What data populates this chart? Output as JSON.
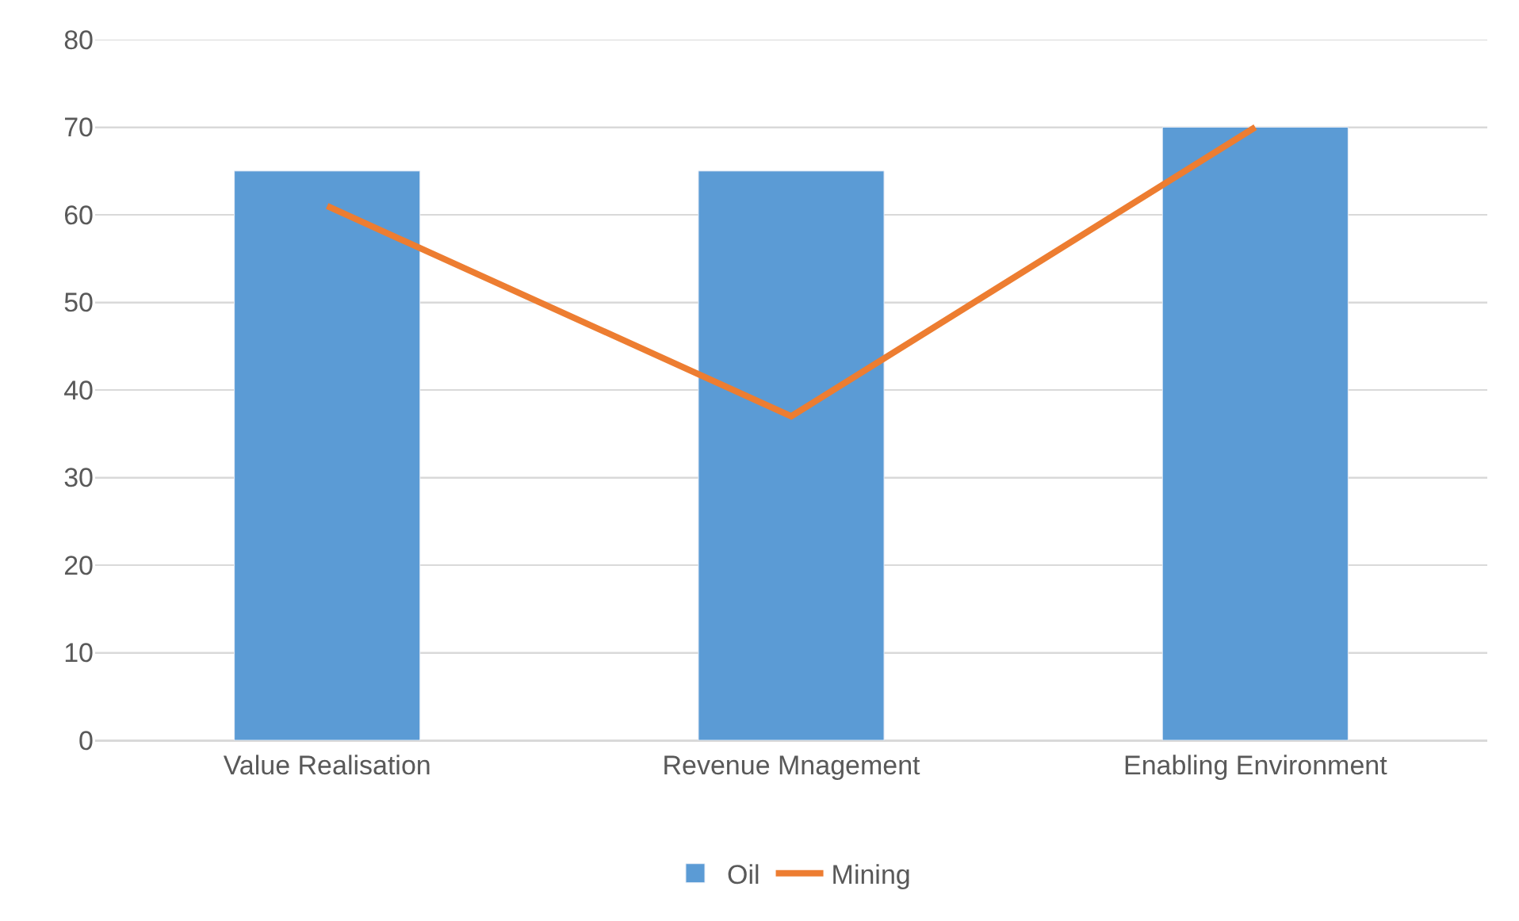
{
  "chart_data": {
    "type": "bar",
    "categories": [
      "Value Realisation",
      "Revenue Mnagement",
      "Enabling Environment"
    ],
    "series": [
      {
        "name": "Oil",
        "color": "#5b9bd5",
        "values": [
          65,
          65,
          70
        ]
      },
      {
        "name": "Mining",
        "type": "line",
        "color": "#ed7d31",
        "values": [
          61,
          37,
          70
        ]
      }
    ],
    "ylim": [
      0,
      80
    ],
    "yticks": [
      0,
      10,
      20,
      30,
      40,
      50,
      60,
      70,
      80
    ],
    "grid": "y",
    "legend": "bottom",
    "marker": "none"
  }
}
